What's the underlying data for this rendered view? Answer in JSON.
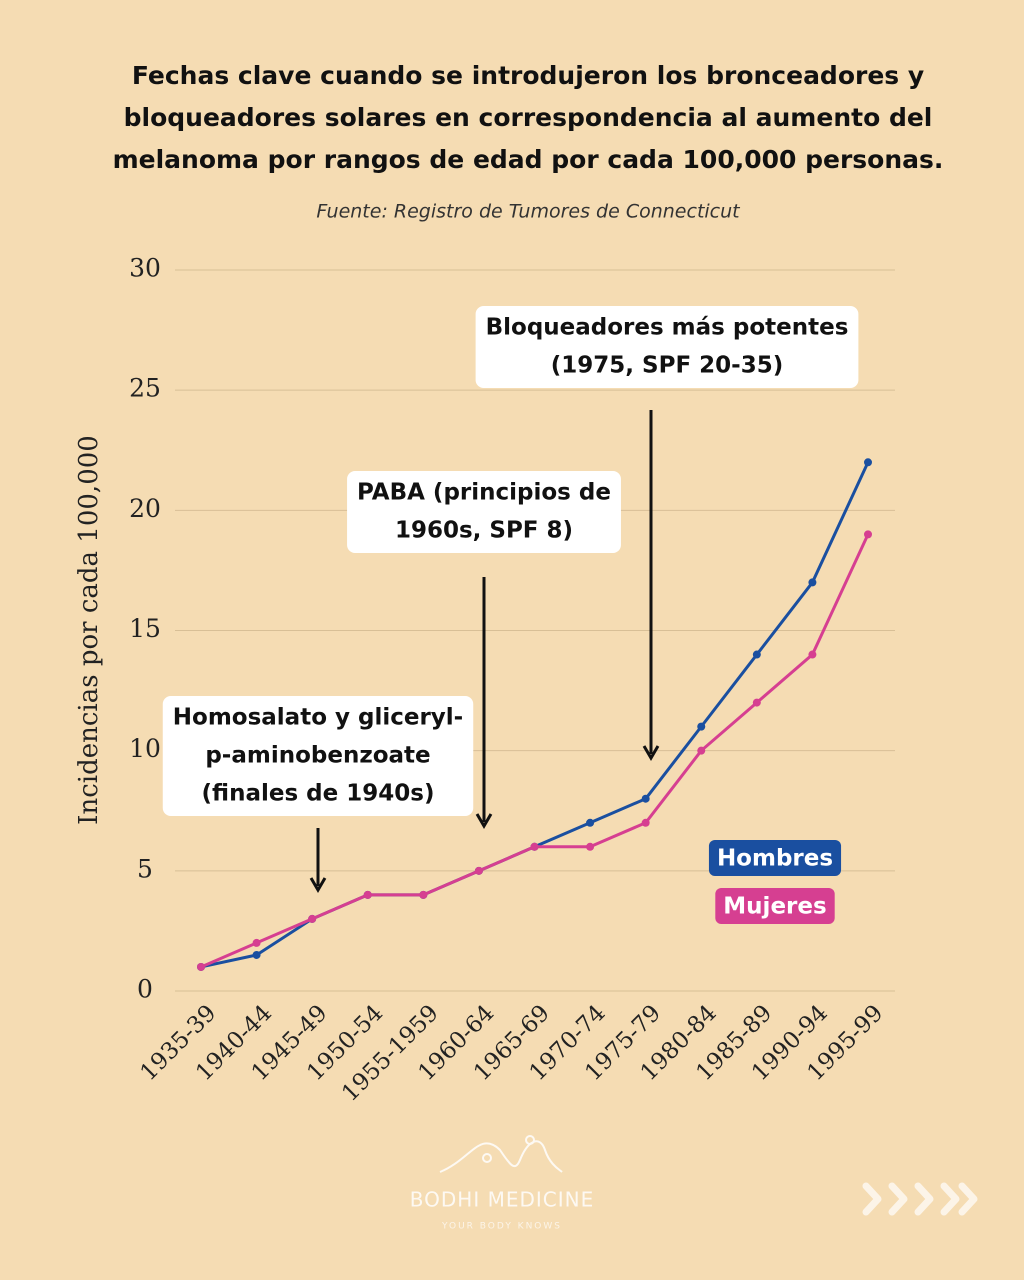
{
  "chart_data": {
    "type": "line",
    "title": [
      "Fechas clave cuando se introdujeron los bronceadores y",
      "bloqueadores solares en correspondencia al aumento del",
      "melanoma por rangos de edad por cada 100,000 personas."
    ],
    "subtitle": "Fuente: Registro de Tumores de Connecticut",
    "ylabel": "Incidencias por cada 100,000",
    "categories": [
      "1935-39",
      "1940-44",
      "1945-49",
      "1950-54",
      "1955-1959",
      "1960-64",
      "1965-69",
      "1970-74",
      "1975-79",
      "1980-84",
      "1985-89",
      "1990-94",
      "1995-99"
    ],
    "series": [
      {
        "name": "Hombres",
        "color": "#1a4fa0",
        "values": [
          1,
          1.5,
          3,
          4,
          4,
          5,
          6,
          7,
          8,
          11,
          14,
          17,
          22
        ]
      },
      {
        "name": "Mujeres",
        "color": "#d63f91",
        "values": [
          1,
          2,
          3,
          4,
          4,
          5,
          6,
          6,
          7,
          10,
          12,
          14,
          19
        ]
      }
    ],
    "ylim": [
      0,
      30
    ],
    "yticks": [
      0,
      5,
      10,
      15,
      20,
      25,
      30
    ],
    "grid": true,
    "annotations": [
      {
        "lines": [
          "Homosalato y gliceryl-",
          "p-aminobenzoate",
          "(finales de 1940s)"
        ]
      },
      {
        "lines": [
          "PABA (principios de",
          "1960s, SPF 8)"
        ]
      },
      {
        "lines": [
          "Bloqueadores más potentes",
          "(1975, SPF 20-35)"
        ]
      }
    ]
  },
  "brand": {
    "name": "BODHI MEDICINE",
    "tagline": "YOUR BODY KNOWS"
  }
}
